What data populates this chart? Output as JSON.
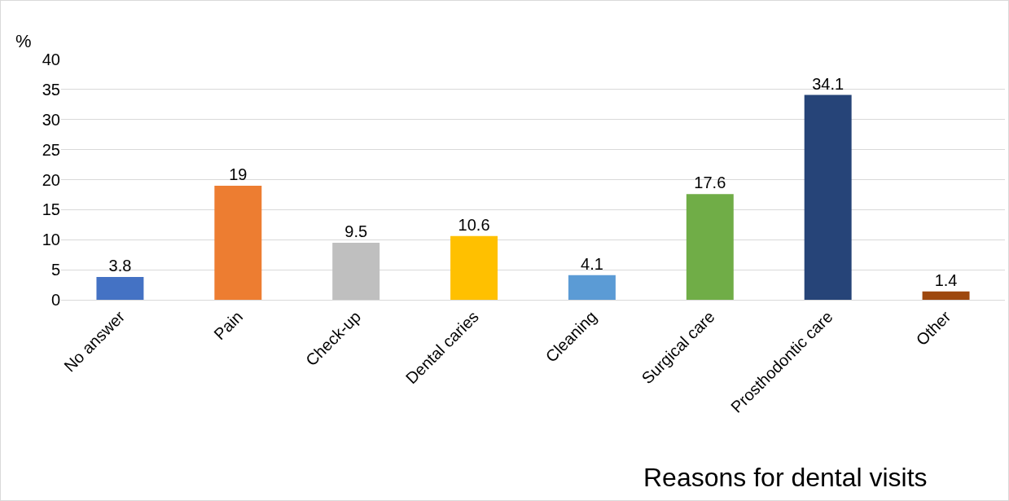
{
  "chart_data": {
    "type": "bar",
    "xlabel": "Reasons for dental visits",
    "ylabel": "%",
    "categories": [
      "No answer",
      "Pain",
      "Check-up",
      "Dental caries",
      "Cleaning",
      "Surgical care",
      "Prosthodontic care",
      "Other"
    ],
    "values": [
      3.8,
      19,
      9.5,
      10.6,
      4.1,
      17.6,
      34.1,
      1.4
    ],
    "colors": [
      "#4472c4",
      "#ed7d31",
      "#bfbfbf",
      "#ffc000",
      "#5b9bd5",
      "#70ad47",
      "#264478",
      "#9e480e"
    ],
    "ylim": [
      0,
      40
    ],
    "yticks": [
      0,
      5,
      10,
      15,
      20,
      25,
      30,
      35,
      40
    ],
    "grid": "y",
    "data_labels": true,
    "legend": false
  }
}
